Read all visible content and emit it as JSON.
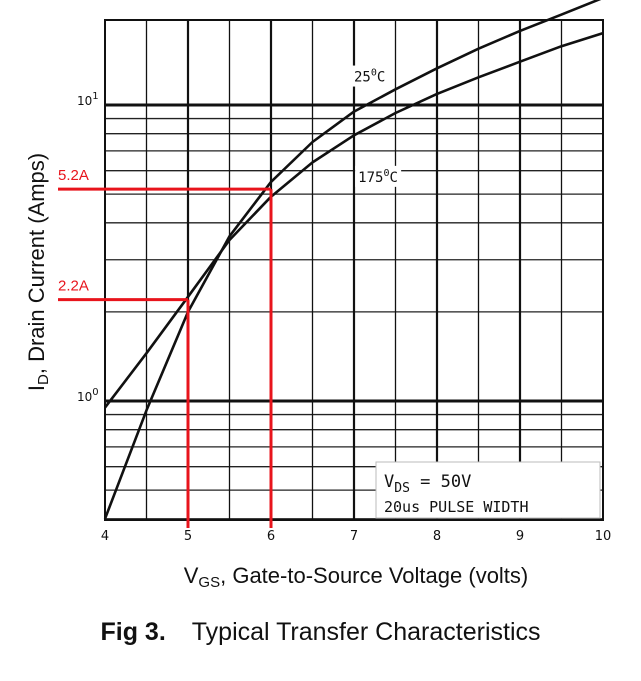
{
  "chart_data": {
    "type": "line",
    "title": "",
    "caption_prefix": "Fig 3.",
    "caption": "Typical Transfer Characteristics",
    "xlabel": {
      "main": "V",
      "sub": "GS",
      "rest": ", Gate-to-Source Voltage (volts)"
    },
    "ylabel": {
      "main": "I",
      "sub": "D",
      "rest": ", Drain Current (Amps)"
    },
    "x_scale": "linear",
    "y_scale": "log",
    "xlim": [
      4,
      10
    ],
    "ylim": [
      0.4,
      23
    ],
    "x_ticks": [
      4,
      5,
      6,
      7,
      8,
      9,
      10
    ],
    "y_ticks": [
      {
        "value": 1,
        "base": "10",
        "exp": "0"
      },
      {
        "value": 10,
        "base": "10",
        "exp": "1"
      }
    ],
    "grid": true,
    "series": [
      {
        "name": "25°C",
        "label_main": "25",
        "label_sup": "0",
        "label_unit": "C",
        "label_at": [
          7.0,
          12.0
        ],
        "x": [
          4,
          4.5,
          5,
          5.5,
          6,
          6.5,
          7,
          7.5,
          8,
          8.5,
          9,
          9.5,
          10
        ],
        "y": [
          0.4,
          0.93,
          2.0,
          3.6,
          5.5,
          7.5,
          9.5,
          11.3,
          13.3,
          15.5,
          17.8,
          20.2,
          23
        ]
      },
      {
        "name": "175°C",
        "label_main": "175",
        "label_sup": "0",
        "label_unit": "C",
        "label_at": [
          7.05,
          5.5
        ],
        "x": [
          4,
          4.5,
          5,
          5.5,
          6,
          6.5,
          7,
          7.5,
          8,
          8.5,
          9,
          9.5,
          10
        ],
        "y": [
          0.95,
          1.45,
          2.25,
          3.5,
          4.9,
          6.4,
          7.9,
          9.4,
          10.9,
          12.4,
          14.0,
          15.8,
          17.5
        ]
      }
    ],
    "annotations": [
      {
        "label": "5.2A",
        "x": 6,
        "y": 5.2,
        "color": "#e8141c"
      },
      {
        "label": "2.2A",
        "x": 5,
        "y": 2.2,
        "color": "#e8141c"
      }
    ],
    "legend_box": {
      "line1_main": "V",
      "line1_sub": "DS",
      "line1_rest": " = 50V",
      "line2": "20us PULSE WIDTH",
      "position": "bottom-right"
    }
  }
}
